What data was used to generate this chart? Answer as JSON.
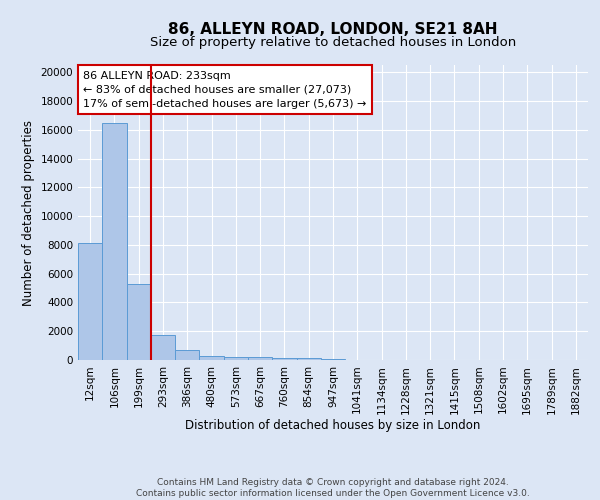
{
  "title_line1": "86, ALLEYN ROAD, LONDON, SE21 8AH",
  "title_line2": "Size of property relative to detached houses in London",
  "xlabel": "Distribution of detached houses by size in London",
  "ylabel": "Number of detached properties",
  "bar_labels": [
    "12sqm",
    "106sqm",
    "199sqm",
    "293sqm",
    "386sqm",
    "480sqm",
    "573sqm",
    "667sqm",
    "760sqm",
    "854sqm",
    "947sqm",
    "1041sqm",
    "1134sqm",
    "1228sqm",
    "1321sqm",
    "1415sqm",
    "1508sqm",
    "1602sqm",
    "1695sqm",
    "1789sqm",
    "1882sqm"
  ],
  "bar_heights": [
    8100,
    16500,
    5300,
    1750,
    700,
    300,
    220,
    175,
    150,
    130,
    100,
    0,
    0,
    0,
    0,
    0,
    0,
    0,
    0,
    0,
    0
  ],
  "bar_color": "#aec6e8",
  "bar_edge_color": "#5b9bd5",
  "background_color": "#dce6f5",
  "fig_background_color": "#dce6f5",
  "grid_color": "#ffffff",
  "vline_x": 2.5,
  "vline_color": "#cc0000",
  "annotation_text_line1": "86 ALLEYN ROAD: 233sqm",
  "annotation_text_line2": "← 83% of detached houses are smaller (27,073)",
  "annotation_text_line3": "17% of semi-detached houses are larger (5,673) →",
  "annotation_box_color": "#ffffff",
  "annotation_box_edge": "#cc0000",
  "ylim": [
    0,
    20500
  ],
  "yticks": [
    0,
    2000,
    4000,
    6000,
    8000,
    10000,
    12000,
    14000,
    16000,
    18000,
    20000
  ],
  "footer_text": "Contains HM Land Registry data © Crown copyright and database right 2024.\nContains public sector information licensed under the Open Government Licence v3.0.",
  "title_fontsize": 11,
  "subtitle_fontsize": 9.5,
  "xlabel_fontsize": 8.5,
  "ylabel_fontsize": 8.5,
  "tick_fontsize": 7.5,
  "annot_fontsize": 8,
  "footer_fontsize": 6.5
}
